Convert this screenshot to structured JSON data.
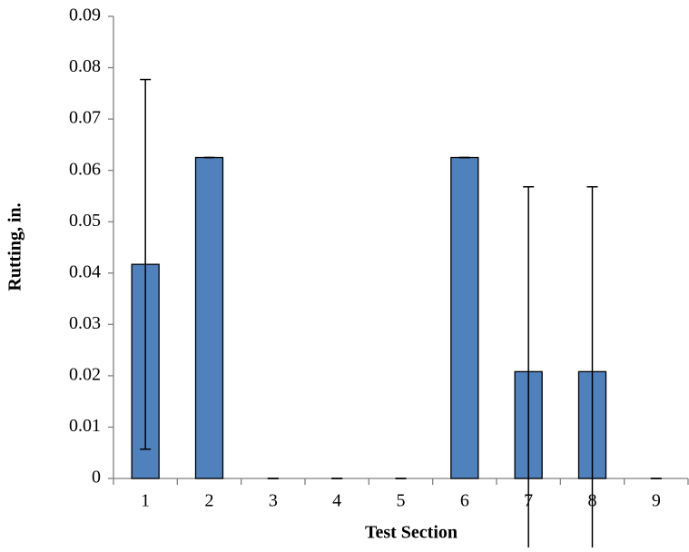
{
  "chart_data": {
    "type": "bar",
    "xlabel": "Test Section",
    "ylabel": "Rutting, in.",
    "categories": [
      "1",
      "2",
      "3",
      "4",
      "5",
      "6",
      "7",
      "8",
      "9"
    ],
    "values": [
      0.0417,
      0.0625,
      0,
      0,
      0,
      0.0625,
      0.0208,
      0.0208,
      0
    ],
    "errors": [
      0.036,
      0,
      0,
      0,
      0,
      0,
      0.036,
      0.036,
      0
    ],
    "color": "#4f81bd",
    "ylim": [
      0,
      0.09
    ],
    "yticks": [
      0,
      0.01,
      0.02,
      0.03,
      0.04,
      0.05,
      0.06,
      0.07,
      0.08,
      0.09
    ],
    "grid": false
  }
}
